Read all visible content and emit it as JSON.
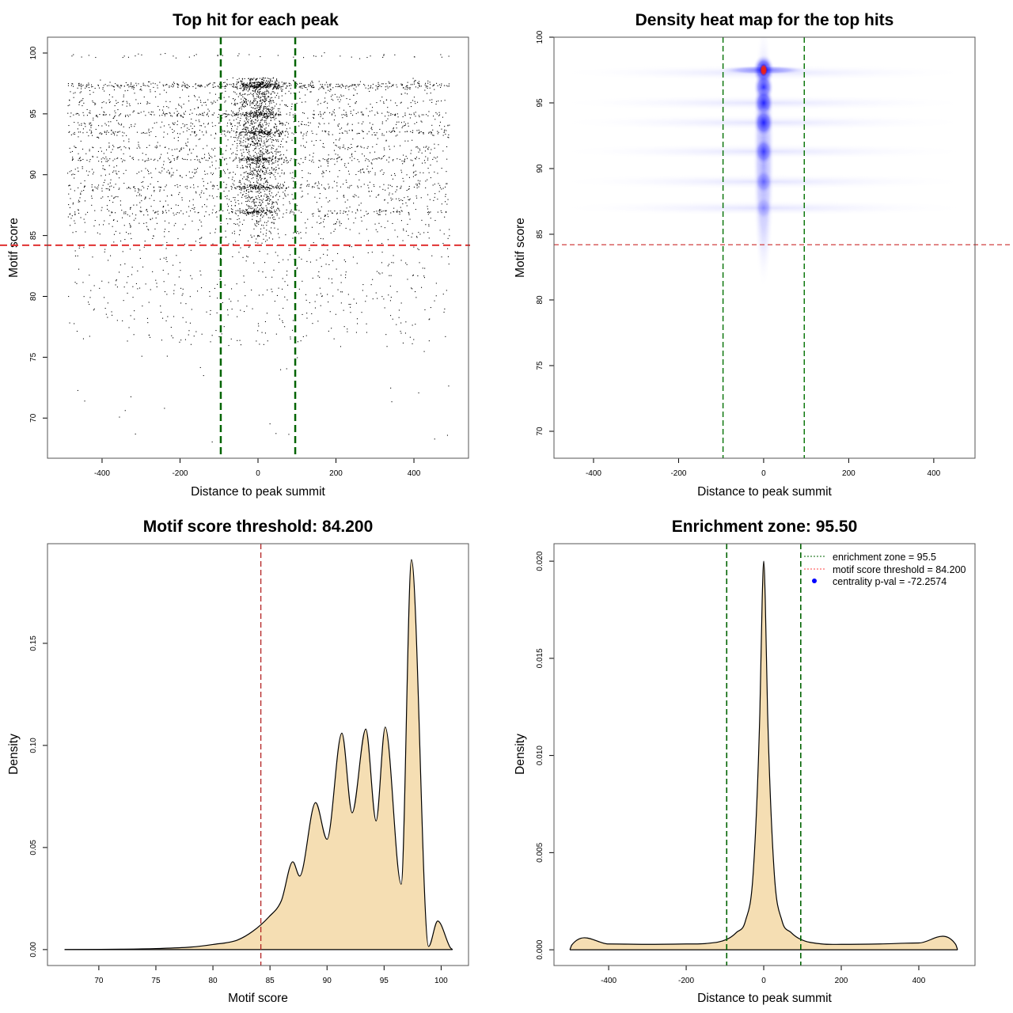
{
  "chart_data": [
    {
      "type": "scatter",
      "title": "Top hit for each peak",
      "xlabel": "Distance to peak summit",
      "ylabel": "Motif score",
      "xlim": [
        -540,
        540
      ],
      "ylim": [
        66.7,
        101.3
      ],
      "xticks": [
        -400,
        -200,
        0,
        200,
        400
      ],
      "xtick_labels": [
        "-400",
        "-200",
        "0",
        "200",
        "400"
      ],
      "yticks": [
        70,
        75,
        80,
        85,
        90,
        95,
        100
      ],
      "ytick_labels": [
        "70",
        "75",
        "80",
        "85",
        "90",
        "95",
        "100"
      ],
      "vlines": [
        -95.5,
        95.5
      ],
      "hline": 84.2,
      "vline_color": "#006400",
      "hline_color": "#e03030",
      "point_color": "#000000",
      "grid": false
    },
    {
      "type": "heatmap",
      "title": "Density heat map for the top hits",
      "xlabel": "Distance to peak summit",
      "ylabel": "Motif score",
      "xlim": [
        -493,
        497
      ],
      "ylim": [
        67.95,
        100
      ],
      "xticks": [
        -400,
        -200,
        0,
        200,
        400
      ],
      "xtick_labels": [
        "-400",
        "-200",
        "0",
        "200",
        "400"
      ],
      "yticks": [
        70,
        75,
        80,
        85,
        90,
        95,
        100
      ],
      "ytick_labels": [
        "70",
        "75",
        "80",
        "85",
        "90",
        "95",
        "100"
      ],
      "vlines": [
        -95.5,
        95.5
      ],
      "hline": 84.2,
      "colors": {
        "low": "#ffffff",
        "mid": "#0000ff",
        "high": "#ff0000"
      },
      "density_peaks": [
        {
          "x": 0,
          "y": 97.5,
          "intensity": 1.0
        },
        {
          "x": 0,
          "y": 96.2,
          "intensity": 0.75
        },
        {
          "x": 0,
          "y": 95.0,
          "intensity": 0.8
        },
        {
          "x": 0,
          "y": 93.5,
          "intensity": 0.8
        },
        {
          "x": 0,
          "y": 91.3,
          "intensity": 0.6
        },
        {
          "x": 0,
          "y": 89.0,
          "intensity": 0.4
        },
        {
          "x": 0,
          "y": 87.0,
          "intensity": 0.25
        }
      ],
      "grid": false
    },
    {
      "type": "area",
      "title": "Motif score threshold: 84.200",
      "xlabel": "Motif score",
      "ylabel": "Density",
      "xlim": [
        65.5,
        102.4
      ],
      "ylim": [
        -0.0078,
        0.1988
      ],
      "xticks": [
        70,
        75,
        80,
        85,
        90,
        95,
        100
      ],
      "xtick_labels": [
        "70",
        "75",
        "80",
        "85",
        "90",
        "95",
        "100"
      ],
      "yticks": [
        0,
        0.05,
        0.1,
        0.15
      ],
      "ytick_labels": [
        "0.00",
        "0.05",
        "0.10",
        "0.15"
      ],
      "vline": 84.2,
      "vline_color": "#b22222",
      "fill_color": "#f5deb3",
      "x": [
        67,
        72,
        75,
        78,
        80,
        82.15,
        83.5,
        84.9,
        86,
        87.0,
        87.6,
        89.0,
        90.0,
        91.3,
        92.2,
        93.4,
        94.3,
        95.1,
        96.5,
        97.4,
        98.9,
        99.7,
        100.8,
        101
      ],
      "y": [
        0,
        0.0002,
        0.0005,
        0.0012,
        0.0025,
        0.0047,
        0.009,
        0.016,
        0.024,
        0.043,
        0.036,
        0.072,
        0.054,
        0.106,
        0.067,
        0.108,
        0.063,
        0.109,
        0.032,
        0.191,
        0.0015,
        0.014,
        0.001,
        0
      ],
      "grid": false
    },
    {
      "type": "area",
      "title": "Enrichment zone: 95.50",
      "xlabel": "Distance to peak summit",
      "ylabel": "Density",
      "xlim": [
        -541,
        545
      ],
      "ylim": [
        -0.00081,
        0.0209
      ],
      "xticks": [
        -400,
        -200,
        0,
        200,
        400
      ],
      "xtick_labels": [
        "-400",
        "-200",
        "0",
        "200",
        "400"
      ],
      "yticks": [
        0,
        0.005,
        0.01,
        0.015,
        0.02
      ],
      "ytick_labels": [
        "0.000",
        "0.005",
        "0.010",
        "0.015",
        "0.020"
      ],
      "vlines": [
        -95.5,
        95.5
      ],
      "vline_color": "#006400",
      "fill_color": "#f5deb3",
      "x": [
        -500,
        -495,
        -400,
        -300,
        -200,
        -150,
        -96,
        -70,
        -47,
        -27,
        -10,
        -4,
        0,
        4,
        10,
        27,
        47,
        70,
        96,
        150,
        200,
        300,
        400,
        495,
        500
      ],
      "y": [
        0,
        0.00025,
        0.0003,
        0.00028,
        0.0003,
        0.00032,
        0.00053,
        0.0009,
        0.0015,
        0.004,
        0.0122,
        0.018,
        0.02,
        0.018,
        0.0122,
        0.004,
        0.0015,
        0.0009,
        0.00053,
        0.0003,
        0.00028,
        0.0003,
        0.00035,
        0.00028,
        0
      ],
      "legend": {
        "position": "top-right",
        "entries": [
          {
            "label": "enrichment zone = 95.5",
            "style": "dotted",
            "color": "#006400"
          },
          {
            "label": "motif score threshold = 84.200",
            "style": "dotted",
            "color": "#ff4040"
          },
          {
            "label": "centrality p-val = -72.2574",
            "style": "point",
            "color": "#0000ff"
          }
        ]
      },
      "grid": false
    }
  ]
}
